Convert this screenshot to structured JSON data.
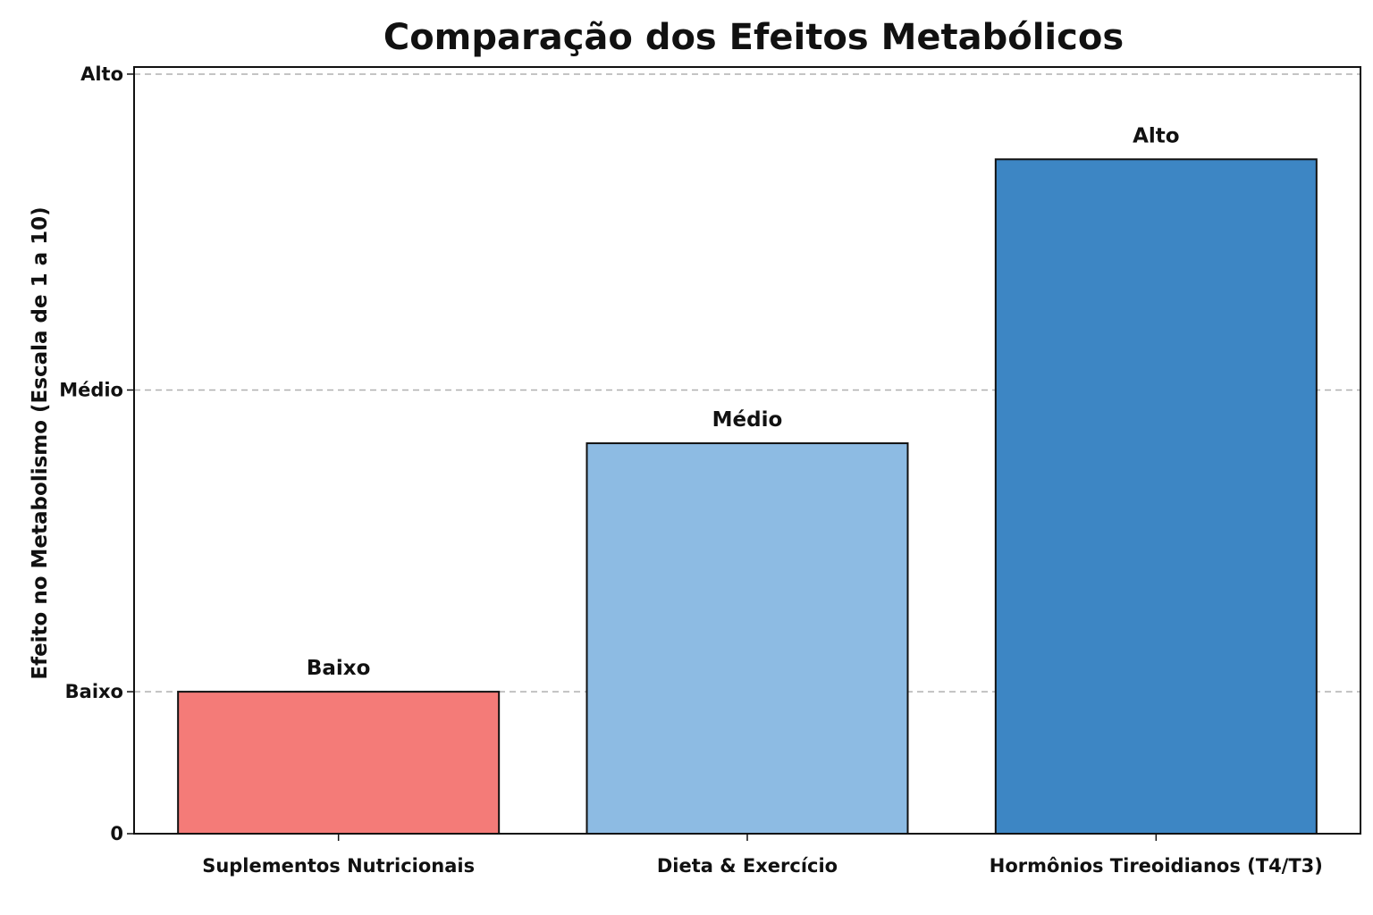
{
  "chart_data": {
    "type": "bar",
    "title": "Comparação dos Efeitos Metabólicos",
    "xlabel": "",
    "ylabel": "Efeito no Metabolismo (Escala de 1 a 10)",
    "categories": [
      "Suplementos Nutricionais",
      "Dieta & Exercício",
      "Hormônios Tireoidianos (T4/T3)"
    ],
    "values": [
      2,
      5.5,
      9.5
    ],
    "bar_labels": [
      "Baixo",
      "Médio",
      "Alto"
    ],
    "colors": [
      "#f47b78",
      "#8dbbe3",
      "#3d86c4"
    ],
    "ylim": [
      0,
      10.8
    ],
    "yticks": [
      {
        "value": 0,
        "label": "0"
      },
      {
        "value": 2,
        "label": "Baixo"
      },
      {
        "value": 6.25,
        "label": "Médio"
      },
      {
        "value": 10.7,
        "label": "Alto"
      }
    ],
    "grid": true,
    "grid_style": "dashed",
    "legend": "none"
  }
}
